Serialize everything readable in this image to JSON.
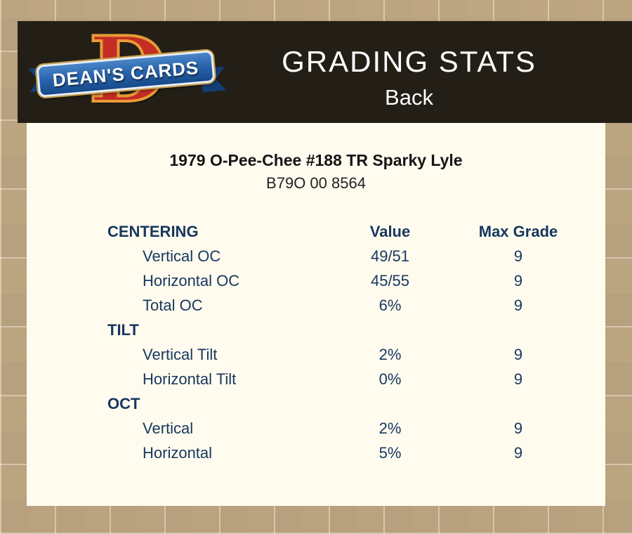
{
  "header": {
    "title": "GRADING STATS",
    "subtitle": "Back",
    "logo": {
      "letter": "D",
      "text": "DEAN'S CARDS"
    }
  },
  "card": {
    "title": "1979 O-Pee-Chee #188 TR Sparky Lyle",
    "serial": "B79O 00 8564"
  },
  "table": {
    "columns": [
      "",
      "Value",
      "Max Grade"
    ],
    "sections": [
      {
        "label": "CENTERING",
        "rows": [
          {
            "label": "Vertical OC",
            "value": "49/51",
            "max_grade": "9"
          },
          {
            "label": "Horizontal OC",
            "value": "45/55",
            "max_grade": "9"
          },
          {
            "label": "Total OC",
            "value": "6%",
            "max_grade": "9"
          }
        ]
      },
      {
        "label": "TILT",
        "rows": [
          {
            "label": "Vertical Tilt",
            "value": "2%",
            "max_grade": "9"
          },
          {
            "label": "Horizontal Tilt",
            "value": "0%",
            "max_grade": "9"
          }
        ]
      },
      {
        "label": "OCT",
        "rows": [
          {
            "label": "Vertical",
            "value": "2%",
            "max_grade": "9"
          },
          {
            "label": "Horizontal",
            "value": "5%",
            "max_grade": "9"
          }
        ]
      }
    ]
  },
  "colors": {
    "accent_navy": "#17375D",
    "header_bg": "#231F17",
    "panel_bg": "#FFFBEF",
    "page_bg": "#C6B08C",
    "logo_red": "#C42D25",
    "logo_gold": "#E89B35",
    "ribbon_blue": "#164A8C"
  }
}
